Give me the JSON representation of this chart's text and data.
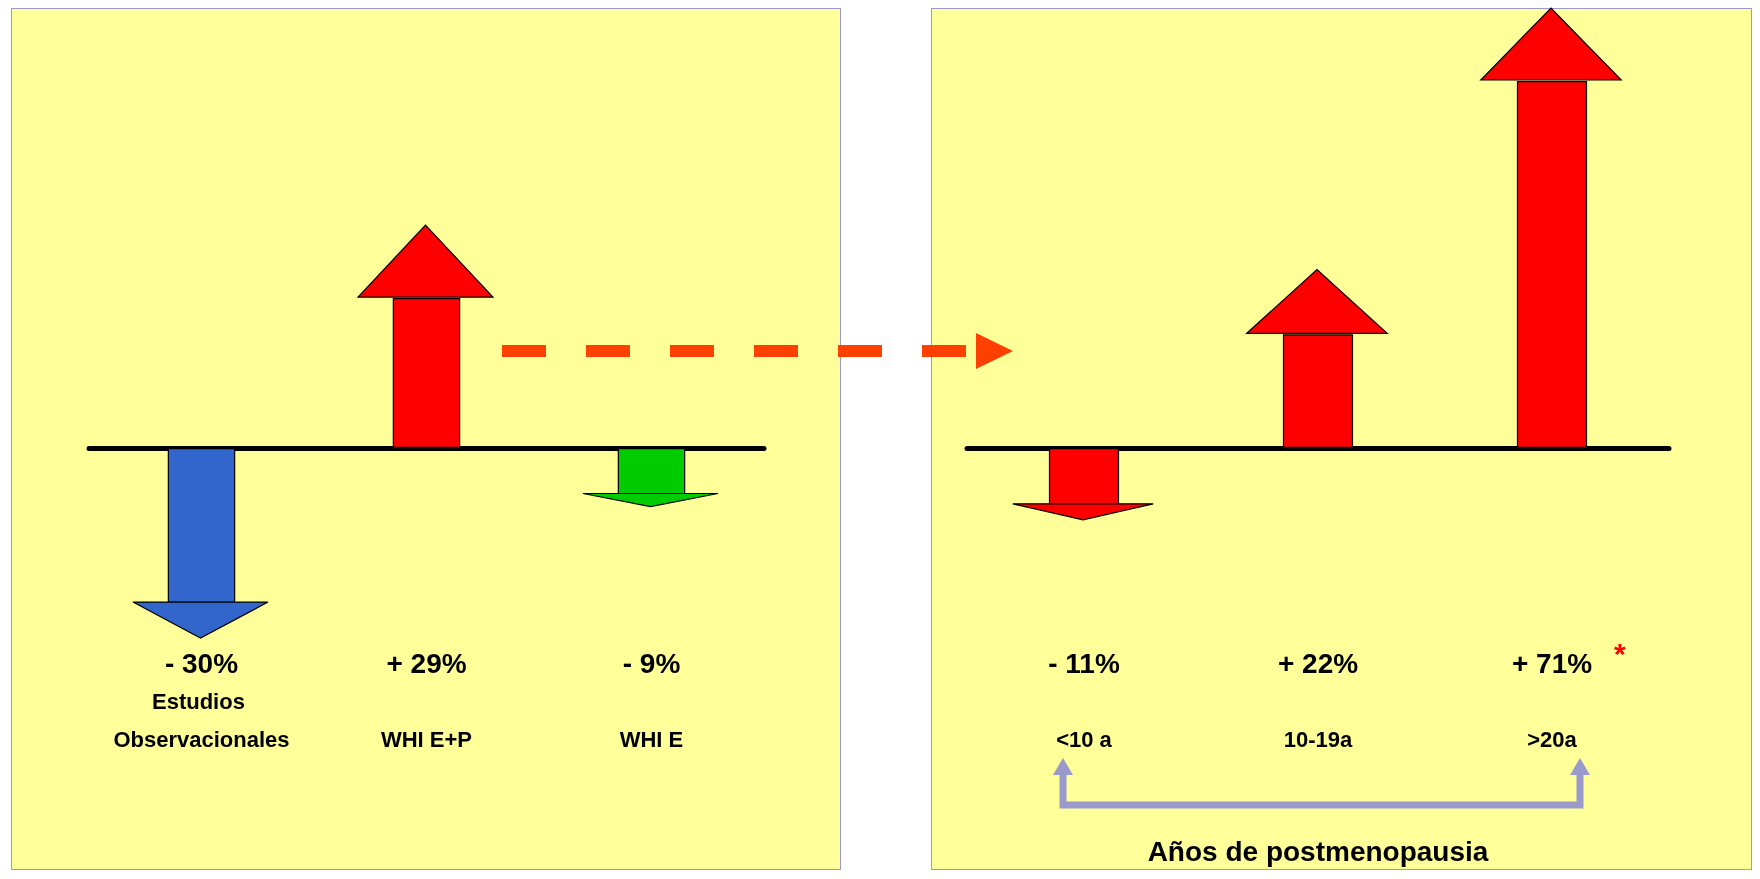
{
  "chart_data": [
    {
      "type": "bar",
      "categories": [
        "Estudios Observacionales",
        "WHI E+P",
        "WHI E"
      ],
      "colors": [
        "#3366cc",
        "#ff0000",
        "#00cc00"
      ],
      "values": [
        -30,
        29,
        -9
      ],
      "value_labels": [
        "- 30%",
        "+ 29%",
        "- 9%"
      ],
      "tick_labels": "x"
    },
    {
      "type": "bar",
      "categories": [
        "<10 a",
        "10-19a",
        ">20a"
      ],
      "colors": [
        "#ff0000",
        "#ff0000",
        "#ff0000"
      ],
      "values": [
        -11,
        22,
        71
      ],
      "value_labels": [
        "- 11%",
        "+ 22%",
        "+ 71%"
      ],
      "tick_labels": "x",
      "xlabel": "Años de postmenopausia",
      "annotations": [
        "*"
      ]
    }
  ]
}
